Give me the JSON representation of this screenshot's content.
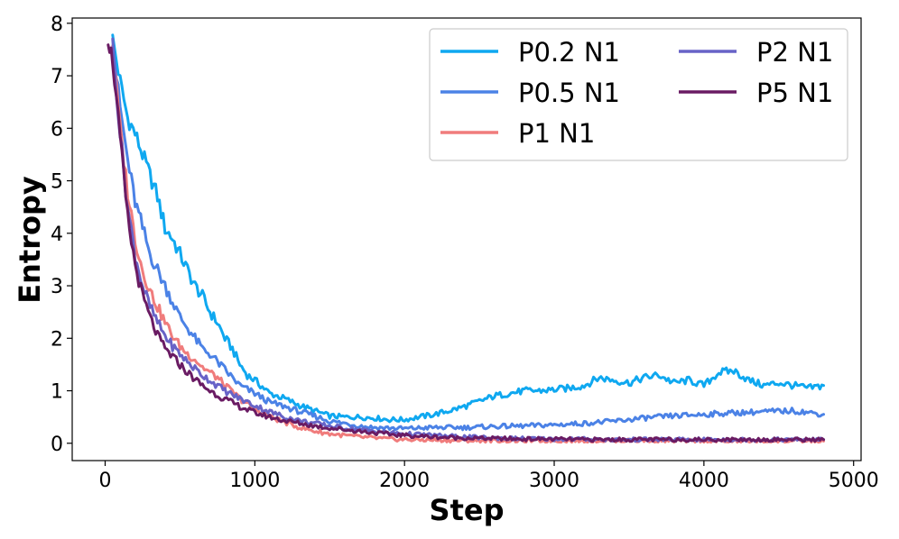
{
  "chart_data": {
    "type": "line",
    "xlabel": "Step",
    "ylabel": "Entropy",
    "xlim": [
      -220,
      5050
    ],
    "ylim": [
      -0.33,
      8.1
    ],
    "xticks": [
      0,
      1000,
      2000,
      3000,
      4000,
      5000
    ],
    "yticks": [
      0,
      1,
      2,
      3,
      4,
      5,
      6,
      7,
      8
    ],
    "grid": false,
    "legend_position": "top-right",
    "series": [
      {
        "name": "P0.2 N1",
        "color": "#0FA8F0",
        "x": [
          50,
          100,
          150,
          200,
          250,
          300,
          350,
          400,
          450,
          500,
          550,
          600,
          650,
          700,
          750,
          800,
          850,
          900,
          950,
          1000,
          1100,
          1200,
          1300,
          1400,
          1500,
          1600,
          1700,
          1800,
          1900,
          2000,
          2100,
          2200,
          2300,
          2400,
          2500,
          2600,
          2700,
          2800,
          2900,
          3000,
          3100,
          3200,
          3300,
          3400,
          3500,
          3600,
          3700,
          3800,
          3900,
          4000,
          4100,
          4200,
          4300,
          4400,
          4500,
          4600,
          4700,
          4800
        ],
        "y": [
          7.7,
          6.9,
          6.2,
          5.9,
          5.5,
          5.1,
          4.7,
          4.1,
          3.9,
          3.6,
          3.3,
          3.0,
          2.8,
          2.5,
          2.3,
          2.0,
          1.8,
          1.5,
          1.3,
          1.2,
          0.95,
          0.85,
          0.72,
          0.62,
          0.52,
          0.5,
          0.5,
          0.48,
          0.45,
          0.45,
          0.5,
          0.55,
          0.62,
          0.7,
          0.8,
          0.9,
          0.95,
          1.0,
          1.0,
          1.02,
          1.05,
          1.1,
          1.25,
          1.2,
          1.15,
          1.25,
          1.3,
          1.15,
          1.2,
          1.1,
          1.35,
          1.38,
          1.2,
          1.1,
          1.15,
          1.1,
          1.05,
          1.1
        ]
      },
      {
        "name": "P0.5 N1",
        "color": "#4B82E6",
        "x": [
          50,
          100,
          150,
          200,
          250,
          300,
          350,
          400,
          450,
          500,
          550,
          600,
          650,
          700,
          750,
          800,
          850,
          900,
          1000,
          1100,
          1200,
          1300,
          1400,
          1500,
          1600,
          1700,
          1800,
          1900,
          2000,
          2200,
          2400,
          2600,
          2800,
          3000,
          3200,
          3400,
          3600,
          3800,
          4000,
          4200,
          4400,
          4600,
          4800
        ],
        "y": [
          7.6,
          6.4,
          5.4,
          4.6,
          4.1,
          3.6,
          3.3,
          3.0,
          2.7,
          2.4,
          2.2,
          2.0,
          1.8,
          1.7,
          1.55,
          1.4,
          1.25,
          1.1,
          0.95,
          0.78,
          0.7,
          0.6,
          0.52,
          0.42,
          0.38,
          0.33,
          0.3,
          0.29,
          0.28,
          0.3,
          0.3,
          0.32,
          0.33,
          0.35,
          0.38,
          0.42,
          0.48,
          0.52,
          0.55,
          0.58,
          0.6,
          0.62,
          0.55
        ]
      },
      {
        "name": "P1 N1",
        "color": "#F07C7C",
        "x": [
          50,
          100,
          150,
          200,
          250,
          300,
          350,
          400,
          450,
          500,
          550,
          600,
          650,
          700,
          750,
          800,
          900,
          1000,
          1100,
          1200,
          1300,
          1400,
          1500,
          1600,
          1700,
          1800,
          1900,
          2000,
          2200,
          2400,
          2600,
          2800,
          3000,
          3200,
          3400,
          3600,
          3800,
          4000,
          4200,
          4400,
          4600,
          4800
        ],
        "y": [
          7.6,
          6.0,
          4.8,
          3.9,
          3.3,
          2.9,
          2.6,
          2.3,
          2.05,
          1.85,
          1.7,
          1.6,
          1.45,
          1.35,
          1.25,
          1.1,
          0.85,
          0.65,
          0.5,
          0.4,
          0.3,
          0.23,
          0.18,
          0.15,
          0.12,
          0.1,
          0.08,
          0.07,
          0.06,
          0.05,
          0.05,
          0.05,
          0.05,
          0.05,
          0.05,
          0.05,
          0.05,
          0.04,
          0.04,
          0.04,
          0.04,
          0.04
        ]
      },
      {
        "name": "P2 N1",
        "color": "#6863C7",
        "x": [
          50,
          100,
          150,
          200,
          250,
          300,
          350,
          400,
          450,
          500,
          550,
          600,
          650,
          700,
          750,
          800,
          900,
          1000,
          1100,
          1200,
          1300,
          1400,
          1500,
          1600,
          1700,
          1800,
          1900,
          2000,
          2200,
          2400,
          2600,
          2800,
          3000,
          3200,
          3400,
          3600,
          3800,
          4000,
          4200,
          4400,
          4600,
          4800
        ],
        "y": [
          7.6,
          5.9,
          4.5,
          3.6,
          3.0,
          2.6,
          2.3,
          2.05,
          1.85,
          1.7,
          1.55,
          1.42,
          1.3,
          1.2,
          1.1,
          1.0,
          0.85,
          0.72,
          0.6,
          0.5,
          0.43,
          0.38,
          0.33,
          0.29,
          0.26,
          0.23,
          0.2,
          0.18,
          0.15,
          0.12,
          0.1,
          0.09,
          0.08,
          0.08,
          0.07,
          0.07,
          0.07,
          0.07,
          0.07,
          0.07,
          0.07,
          0.07
        ]
      },
      {
        "name": "P5 N1",
        "color": "#6A1B63",
        "x": [
          20,
          50,
          100,
          150,
          200,
          250,
          300,
          350,
          400,
          450,
          500,
          550,
          600,
          650,
          700,
          750,
          800,
          900,
          1000,
          1100,
          1200,
          1300,
          1400,
          1500,
          1600,
          1700,
          1800,
          1900,
          2000,
          2200,
          2400,
          2600,
          2800,
          3000,
          3200,
          3400,
          3600,
          3800,
          4000,
          4200,
          4400,
          4600,
          4800
        ],
        "y": [
          7.7,
          7.3,
          5.8,
          4.3,
          3.4,
          2.8,
          2.4,
          2.05,
          1.8,
          1.65,
          1.5,
          1.35,
          1.22,
          1.1,
          1.0,
          0.92,
          0.84,
          0.7,
          0.58,
          0.5,
          0.43,
          0.38,
          0.33,
          0.29,
          0.26,
          0.23,
          0.2,
          0.17,
          0.15,
          0.12,
          0.1,
          0.09,
          0.08,
          0.08,
          0.07,
          0.07,
          0.07,
          0.07,
          0.07,
          0.07,
          0.07,
          0.07,
          0.07
        ]
      }
    ]
  }
}
